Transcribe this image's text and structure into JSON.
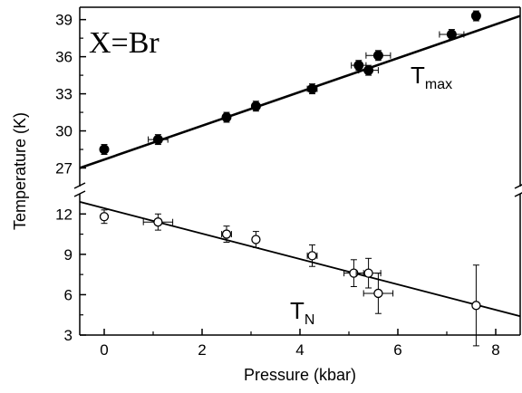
{
  "chart_data": {
    "type": "scatter",
    "xlabel": "Pressure (kbar)",
    "ylabel": "Temperature (K)",
    "xlim": [
      -0.5,
      8.5
    ],
    "x_ticks": [
      "0",
      "2",
      "4",
      "6",
      "8"
    ],
    "x_tick_values": [
      0,
      2,
      4,
      6,
      8
    ],
    "annotation": "X=Br",
    "axis_break": "between 25.5 K and 13.5 K",
    "panels": [
      {
        "name": "upper",
        "ylim": [
          25.5,
          40
        ],
        "y_ticks": [
          "27",
          "30",
          "33",
          "36",
          "39"
        ],
        "y_tick_values": [
          27,
          30,
          33,
          36,
          39
        ]
      },
      {
        "name": "lower",
        "ylim": [
          3,
          13.5
        ],
        "y_ticks": [
          "3",
          "6",
          "9",
          "12"
        ],
        "y_tick_values": [
          3,
          6,
          9,
          12
        ]
      }
    ],
    "series": [
      {
        "name": "T",
        "subscript": "max",
        "panel": "upper",
        "marker": "filled-circle",
        "color": "#000000",
        "points": [
          {
            "x": 0.0,
            "y": 28.5,
            "yerr": 0.4,
            "xerr": 0.0
          },
          {
            "x": 1.1,
            "y": 29.3,
            "yerr": 0.4,
            "xerr": 0.2
          },
          {
            "x": 2.5,
            "y": 31.1,
            "yerr": 0.4,
            "xerr": 0.0
          },
          {
            "x": 3.1,
            "y": 32.0,
            "yerr": 0.4,
            "xerr": 0.0
          },
          {
            "x": 4.25,
            "y": 33.4,
            "yerr": 0.4,
            "xerr": 0.1
          },
          {
            "x": 5.2,
            "y": 35.3,
            "yerr": 0.4,
            "xerr": 0.15
          },
          {
            "x": 5.4,
            "y": 34.9,
            "yerr": 0.4,
            "xerr": 0.2
          },
          {
            "x": 5.6,
            "y": 36.1,
            "yerr": 0.4,
            "xerr": 0.25
          },
          {
            "x": 7.1,
            "y": 37.8,
            "yerr": 0.4,
            "xerr": 0.25
          },
          {
            "x": 7.6,
            "y": 39.3,
            "yerr": 0.4,
            "xerr": 0.0
          }
        ],
        "fit": {
          "x": [
            -0.5,
            8.5
          ],
          "y": [
            27.0,
            39.3
          ]
        }
      },
      {
        "name": "T",
        "subscript": "N",
        "panel": "lower",
        "marker": "open-circle",
        "color": "#000000",
        "points": [
          {
            "x": 0.0,
            "y": 11.8,
            "yerr": 0.5,
            "xerr": 0.0
          },
          {
            "x": 1.1,
            "y": 11.4,
            "yerr": 0.6,
            "xerr": 0.3
          },
          {
            "x": 2.5,
            "y": 10.5,
            "yerr": 0.6,
            "xerr": 0.1
          },
          {
            "x": 3.1,
            "y": 10.1,
            "yerr": 0.6,
            "xerr": 0.0
          },
          {
            "x": 4.25,
            "y": 8.9,
            "yerr": 0.8,
            "xerr": 0.1
          },
          {
            "x": 5.1,
            "y": 7.6,
            "yerr": 1.0,
            "xerr": 0.2
          },
          {
            "x": 5.4,
            "y": 7.6,
            "yerr": 1.1,
            "xerr": 0.25
          },
          {
            "x": 5.6,
            "y": 6.1,
            "yerr": 1.5,
            "xerr": 0.3
          },
          {
            "x": 7.6,
            "y": 5.2,
            "yerr": 3.0,
            "xerr": 0.0
          }
        ],
        "fit": {
          "x": [
            -0.5,
            8.5
          ],
          "y": [
            12.9,
            4.4
          ]
        }
      }
    ]
  }
}
